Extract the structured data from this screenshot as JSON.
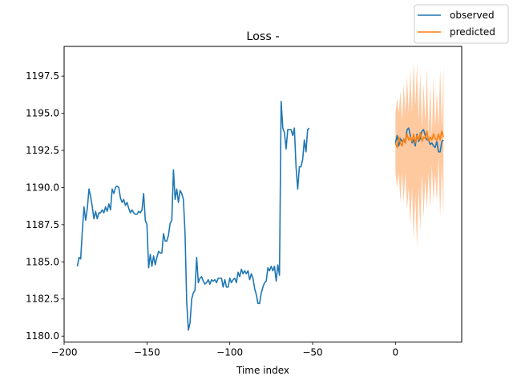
{
  "chart_data": {
    "type": "line",
    "title": "Loss -",
    "xlabel": "Time index",
    "ylabel": "",
    "xlim": [
      -200,
      40
    ],
    "ylim": [
      1179.6,
      1199.5
    ],
    "xticks": [
      -200,
      -150,
      -100,
      -50,
      0
    ],
    "xtick_labels": [
      "−200",
      "−150",
      "−100",
      "−50",
      "0"
    ],
    "yticks": [
      1180.0,
      1182.5,
      1185.0,
      1187.5,
      1190.0,
      1192.5,
      1195.0,
      1197.5
    ],
    "ytick_labels": [
      "1180.0",
      "1182.5",
      "1185.0",
      "1187.5",
      "1190.0",
      "1192.5",
      "1195.0",
      "1197.5"
    ],
    "grid": false,
    "legend_position": "upper-right-outside",
    "series": [
      {
        "name": "observed",
        "color": "#1f77b4",
        "x_start": -192,
        "values": [
          1184.7,
          1185.3,
          1185.2,
          1187.1,
          1188.7,
          1187.8,
          1188.6,
          1189.9,
          1189.4,
          1188.7,
          1187.9,
          1188.4,
          1187.9,
          1188.3,
          1188.3,
          1188.5,
          1188.3,
          1188.7,
          1188.4,
          1188.9,
          1188.5,
          1189.9,
          1189.6,
          1190.0,
          1190.1,
          1190.0,
          1189.3,
          1189.0,
          1189.2,
          1188.8,
          1189.0,
          1188.6,
          1188.3,
          1188.5,
          1188.3,
          1188.2,
          1188.2,
          1188.4,
          1188.3,
          1188.5,
          1189.6,
          1187.8,
          1187.5,
          1184.6,
          1185.5,
          1184.7,
          1185.4,
          1184.8,
          1185.3,
          1185.7,
          1185.6,
          1185.6,
          1186.9,
          1186.4,
          1186.4,
          1186.8,
          1187.6,
          1187.8,
          1191.2,
          1189.2,
          1189.9,
          1189.0,
          1189.8,
          1189.6,
          1189.2,
          1186.9,
          1182.3,
          1180.4,
          1180.9,
          1182.5,
          1182.9,
          1183.1,
          1185.3,
          1183.6,
          1183.9,
          1184.0,
          1183.7,
          1183.5,
          1183.6,
          1183.8,
          1183.5,
          1183.8,
          1183.7,
          1183.8,
          1183.6,
          1183.9,
          1183.9,
          1183.9,
          1183.3,
          1183.8,
          1183.3,
          1183.3,
          1183.9,
          1183.6,
          1183.8,
          1183.9,
          1183.6,
          1184.3,
          1184.0,
          1184.5,
          1184.2,
          1184.4,
          1184.2,
          1184.4,
          1183.8,
          1184.2,
          1183.9,
          1183.2,
          1182.8,
          1182.2,
          1182.2,
          1182.9,
          1183.3,
          1183.6,
          1183.7,
          1184.6,
          1184.4,
          1184.7,
          1184.4,
          1184.7,
          1183.7,
          1184.8,
          1184.1,
          1195.8,
          1194.0,
          1193.7,
          1192.6,
          1193.9,
          1193.9,
          1193.9,
          1193.5,
          1194.0,
          1191.4,
          1189.9,
          1191.4,
          1191.4,
          1191.9,
          1193.2,
          1192.4,
          1193.9,
          1194.0
        ]
      },
      {
        "name": "predicted",
        "color": "#ff7f0e",
        "x_start": 0,
        "values": [
          1193.0,
          1192.7,
          1193.4,
          1193.0,
          1192.8,
          1193.3,
          1193.0,
          1193.6,
          1193.2,
          1193.4,
          1193.1,
          1193.6,
          1193.0,
          1193.5,
          1193.2,
          1193.7,
          1193.1,
          1193.4,
          1193.3,
          1193.8,
          1193.1,
          1193.4,
          1193.2,
          1193.6,
          1193.3,
          1193.2,
          1193.6,
          1193.2,
          1193.8,
          1193.4
        ],
        "band_color": "#ffbb88",
        "band_upper": [
          1195.0,
          1196.0,
          1195.0,
          1196.5,
          1194.5,
          1197.0,
          1195.0,
          1197.5,
          1195.0,
          1198.0,
          1195.0,
          1198.5,
          1195.5,
          1198.3,
          1194.5,
          1197.8,
          1194.0,
          1197.0,
          1194.5,
          1198.0,
          1193.5,
          1197.0,
          1193.5,
          1197.5,
          1194.0,
          1196.5,
          1194.0,
          1198.0,
          1194.0,
          1198.2
        ],
        "band_lower": [
          1191.0,
          1190.0,
          1191.0,
          1189.0,
          1191.0,
          1189.0,
          1191.0,
          1188.5,
          1190.0,
          1187.5,
          1190.0,
          1186.5,
          1189.5,
          1186.0,
          1190.0,
          1187.0,
          1191.0,
          1188.0,
          1190.5,
          1188.5,
          1191.0,
          1188.5,
          1191.5,
          1189.0,
          1191.0,
          1189.0,
          1192.0,
          1188.0,
          1191.5,
          1188.0
        ]
      },
      {
        "name": "",
        "color": "#1f77b4",
        "x_start": 0,
        "values": [
          1193.0,
          1193.5,
          1192.8,
          1193.3,
          1193.1,
          1193.2,
          1193.0,
          1193.9,
          1194.0,
          1193.5,
          1193.0,
          1193.2,
          1192.8,
          1193.6,
          1193.1,
          1193.3,
          1193.8,
          1193.9,
          1193.5,
          1193.2,
          1193.2,
          1192.9,
          1193.0,
          1192.8,
          1192.7,
          1193.1,
          1192.4,
          1192.4,
          1193.1,
          1193.2
        ]
      }
    ]
  }
}
